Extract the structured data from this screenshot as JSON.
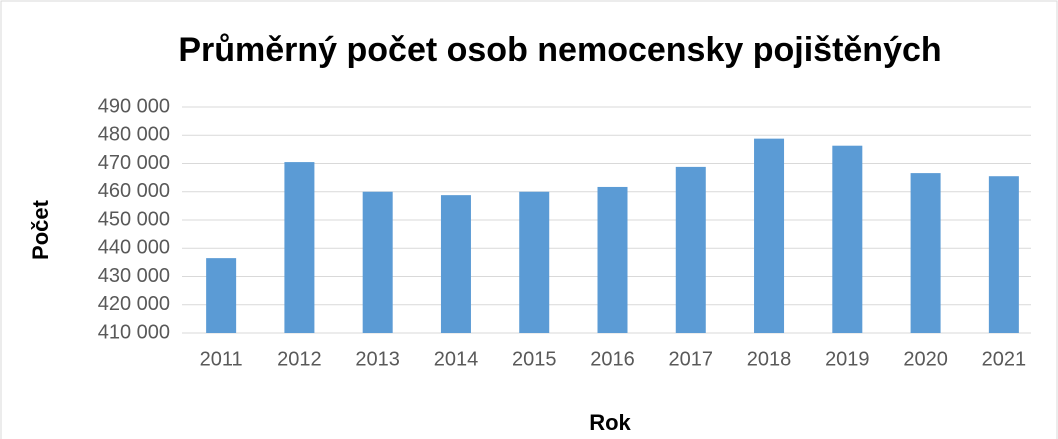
{
  "chart_data": {
    "type": "bar",
    "title": "Průměrný počet osob nemocensky pojištěných",
    "x_label": "Rok",
    "y_label": "Počet",
    "categories": [
      "2011",
      "2012",
      "2013",
      "2014",
      "2015",
      "2016",
      "2017",
      "2018",
      "2019",
      "2020",
      "2021"
    ],
    "values": [
      436500,
      470500,
      460000,
      458800,
      460000,
      461700,
      468800,
      478800,
      476300,
      466600,
      465500
    ],
    "color": "#5b9bd5",
    "ylim": [
      410000,
      490000
    ],
    "yticks": [
      {
        "value": 410000,
        "label": "410 000"
      },
      {
        "value": 420000,
        "label": "420 000"
      },
      {
        "value": 430000,
        "label": "430 000"
      },
      {
        "value": 440000,
        "label": "440 000"
      },
      {
        "value": 450000,
        "label": "450 000"
      },
      {
        "value": 460000,
        "label": "460 000"
      },
      {
        "value": 470000,
        "label": "470 000"
      },
      {
        "value": 480000,
        "label": "480 000"
      },
      {
        "value": 490000,
        "label": "490 000"
      }
    ],
    "grid": true
  }
}
